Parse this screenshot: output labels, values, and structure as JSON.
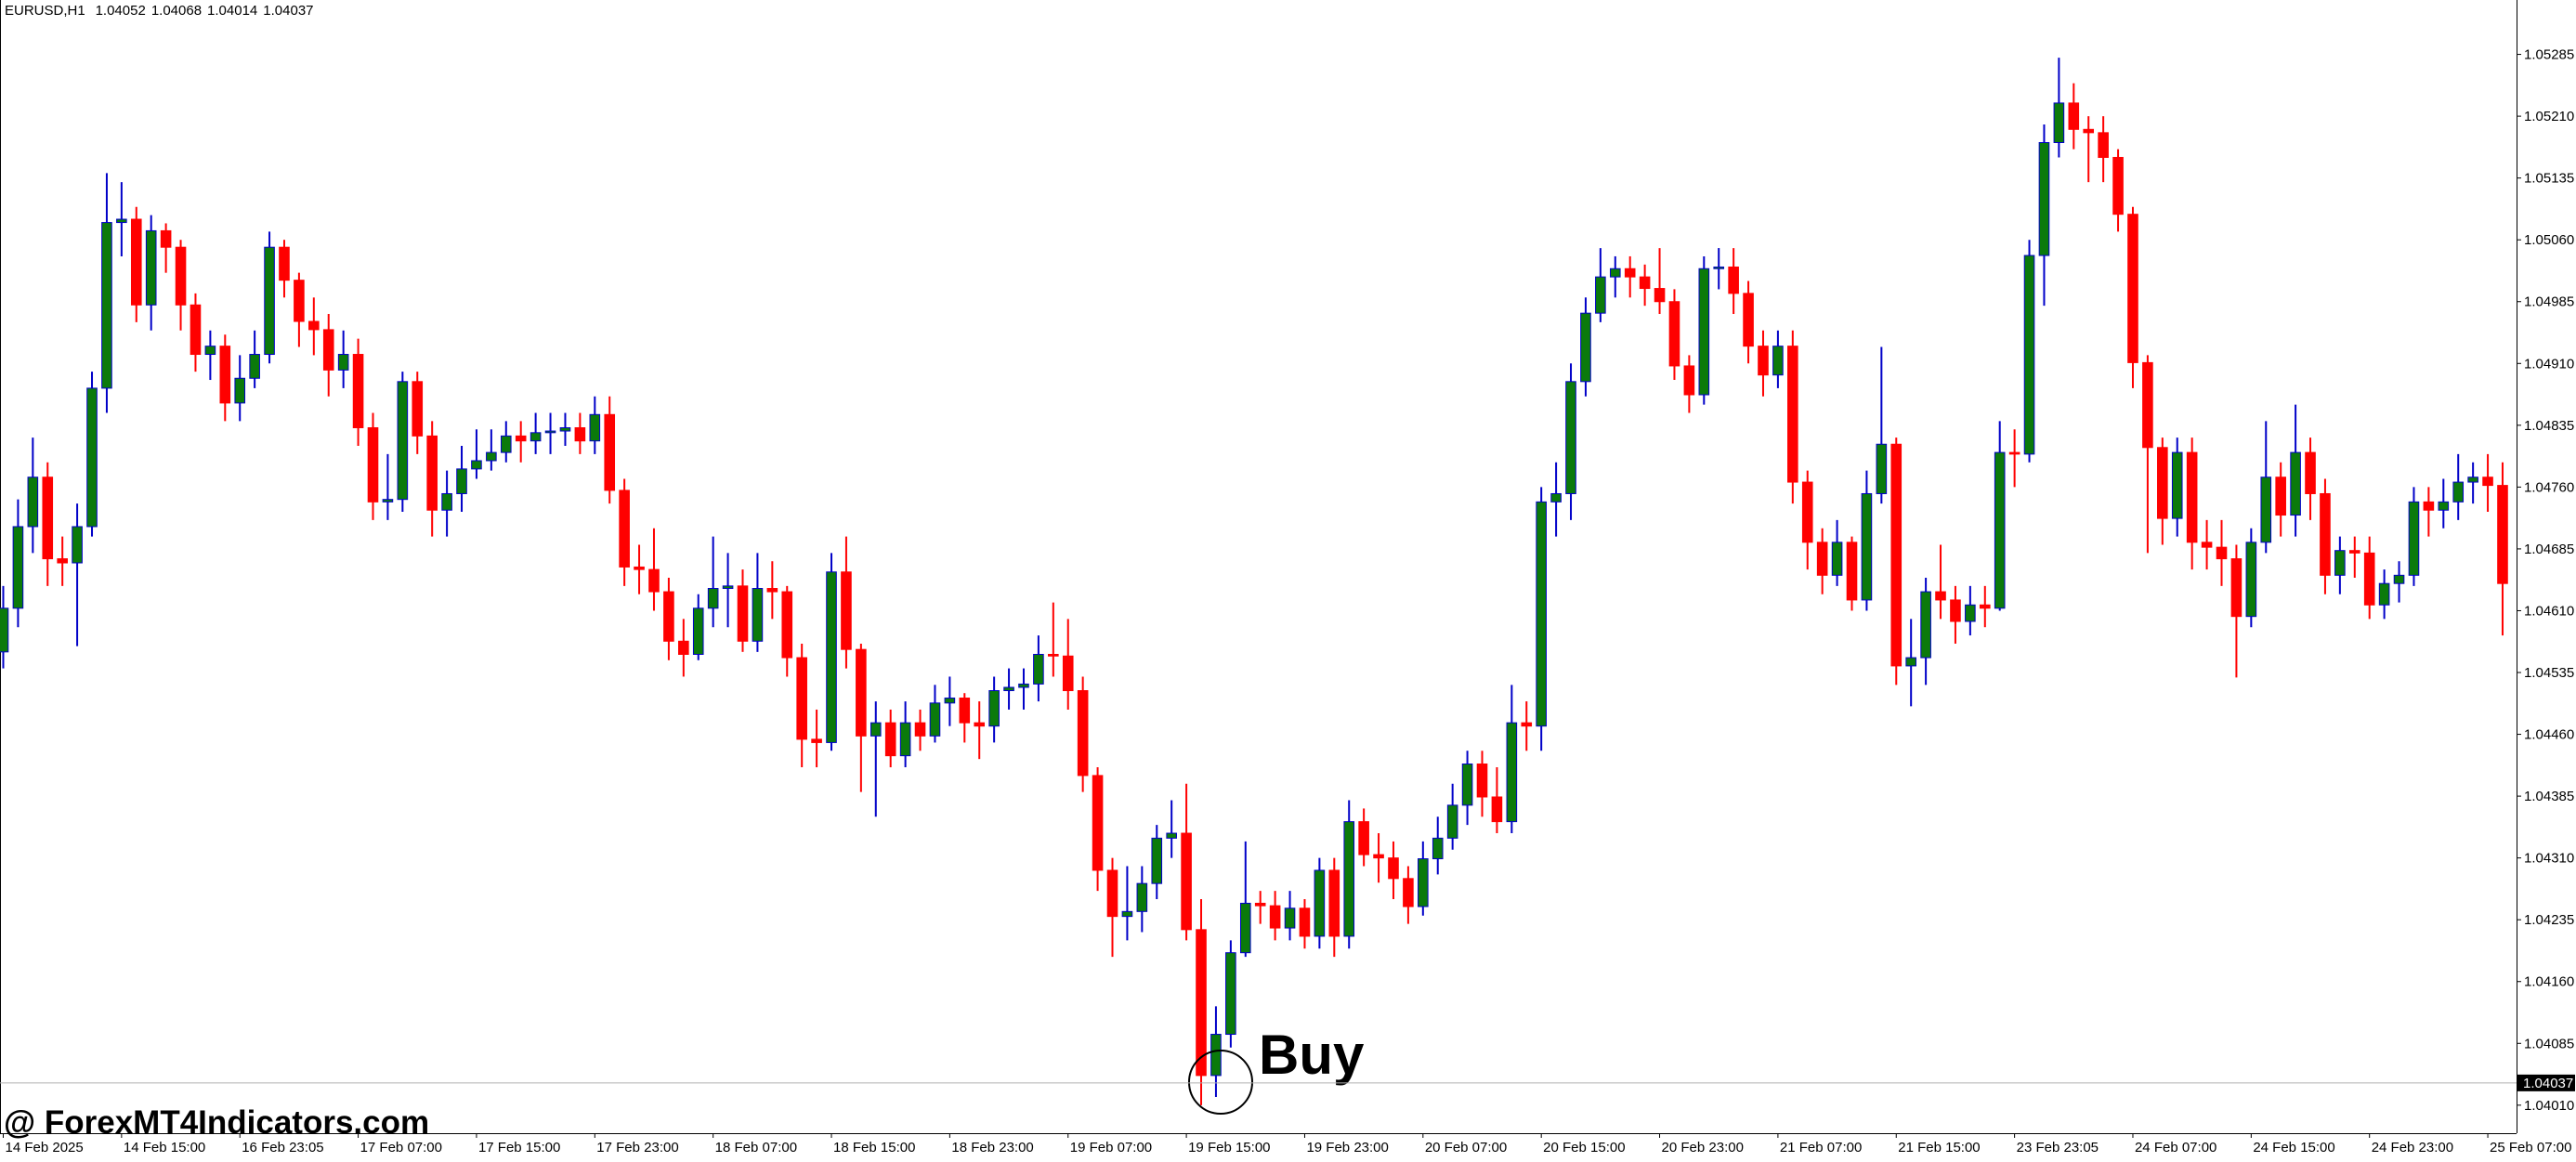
{
  "chart_data": {
    "type": "candlestick",
    "info": {
      "symbol": "EURUSD,H1",
      "open": 1.04052,
      "high": 1.04068,
      "low": 1.04014,
      "close": 1.04037
    },
    "bid": 1.04037,
    "annotation": "Buy",
    "watermark": "@ ForexMT4Indicators.com",
    "bull_color": "#0b7a0b",
    "bull_wick": "#0000c8",
    "bear_color": "#ff0000",
    "ylim": [
      1.03976,
      1.05351
    ],
    "yticks": [
      {
        "value": 1.0401,
        "label": "1.04010"
      },
      1.04085,
      {
        "value": 1.0416,
        "label": "1.04160"
      },
      1.04235,
      {
        "value": 1.0431,
        "label": "1.04310"
      },
      1.04385,
      {
        "value": 1.0446,
        "label": "1.04460"
      },
      1.04535,
      {
        "value": 1.0461,
        "label": "1.04610"
      },
      1.04685,
      {
        "value": 1.0476,
        "label": "1.04760"
      },
      1.04835,
      {
        "value": 1.0491,
        "label": "1.04910"
      },
      1.04985,
      {
        "value": 1.0506,
        "label": "1.05060"
      },
      1.05135,
      {
        "value": 1.0521,
        "label": "1.05210"
      },
      1.05285
    ],
    "categories": [
      "14 Feb 2025",
      null,
      null,
      null,
      null,
      null,
      null,
      null,
      "14 Feb 15:00",
      null,
      null,
      null,
      null,
      null,
      null,
      null,
      "16 Feb 23:05",
      null,
      null,
      null,
      null,
      null,
      null,
      null,
      "17 Feb 07:00",
      null,
      null,
      null,
      null,
      null,
      null,
      null,
      "17 Feb 15:00",
      null,
      null,
      null,
      null,
      null,
      null,
      null,
      "17 Feb 23:00",
      null,
      null,
      null,
      null,
      null,
      null,
      null,
      "18 Feb 07:00",
      null,
      null,
      null,
      null,
      null,
      null,
      null,
      "18 Feb 15:00",
      null,
      null,
      null,
      null,
      null,
      null,
      null,
      "18 Feb 23:00",
      null,
      null,
      null,
      null,
      null,
      null,
      null,
      "19 Feb 07:00",
      null,
      null,
      null,
      null,
      null,
      null,
      null,
      "19 Feb 15:00",
      null,
      null,
      null,
      null,
      null,
      null,
      null,
      "19 Feb 23:00",
      null,
      null,
      null,
      null,
      null,
      null,
      null,
      "20 Feb 07:00",
      null,
      null,
      null,
      null,
      null,
      null,
      null,
      "20 Feb 15:00",
      null,
      null,
      null,
      null,
      null,
      null,
      null,
      "20 Feb 23:00",
      null,
      null,
      null,
      null,
      null,
      null,
      null,
      "21 Feb 07:00",
      null,
      null,
      null,
      null,
      null,
      null,
      null,
      "21 Feb 15:00",
      null,
      null,
      null,
      null,
      null,
      null,
      null,
      "23 Feb 23:05",
      null,
      null,
      null,
      null,
      null,
      null,
      null,
      "24 Feb 07:00",
      null,
      null,
      null,
      null,
      null,
      null,
      null,
      "24 Feb 15:00",
      null,
      null,
      null,
      null,
      null,
      null,
      null,
      "24 Feb 23:00",
      null,
      null,
      null,
      null,
      null,
      null,
      null,
      "25 Feb 07:00",
      null
    ],
    "open": [
      1.0456,
      1.04613,
      1.04712,
      1.04772,
      1.04673,
      1.04668,
      1.04712,
      1.0488,
      1.05081,
      1.05085,
      1.04981,
      1.05071,
      1.05051,
      1.04981,
      1.04921,
      1.04931,
      1.04862,
      1.04892,
      1.04921,
      1.05051,
      1.05011,
      1.04961,
      1.04951,
      1.04902,
      1.04921,
      1.04832,
      1.04742,
      1.04745,
      1.04888,
      1.04822,
      1.04732,
      1.04752,
      1.04782,
      1.04792,
      1.04802,
      1.04822,
      1.04816,
      1.04826,
      1.04828,
      1.04832,
      1.04816,
      1.04848,
      1.04756,
      1.04663,
      1.0466,
      1.04633,
      1.04573,
      1.04557,
      1.04613,
      1.04637,
      1.0464,
      1.04573,
      1.04637,
      1.04633,
      1.04553,
      1.04454,
      1.0445,
      1.04657,
      1.04563,
      1.04458,
      1.04474,
      1.04434,
      1.04474,
      1.04458,
      1.04498,
      1.04504,
      1.04474,
      1.0447,
      1.04513,
      1.04517,
      1.04521,
      1.04557,
      1.04555,
      1.04513,
      1.0441,
      1.04295,
      1.04239,
      1.04245,
      1.04279,
      1.04334,
      1.0434,
      1.04223,
      1.04046,
      1.04096,
      1.04195,
      1.04255,
      1.04252,
      1.04225,
      1.04249,
      1.04215,
      1.04295,
      1.04215,
      1.04354,
      1.04314,
      1.0431,
      1.04285,
      1.04251,
      1.04309,
      1.04334,
      1.04374,
      1.04424,
      1.04384,
      1.04354,
      1.04474,
      1.0447,
      1.04742,
      1.04752,
      1.04888,
      1.04971,
      1.05015,
      1.05025,
      1.05015,
      1.05001,
      1.04985,
      1.04907,
      1.04872,
      1.05025,
      1.05027,
      1.04995,
      1.04931,
      1.04896,
      1.04931,
      1.04766,
      1.04693,
      1.04653,
      1.04693,
      1.04623,
      1.04752,
      1.04812,
      1.04543,
      1.04553,
      1.04633,
      1.04623,
      1.04597,
      1.04617,
      1.04613,
      1.04802,
      1.048,
      1.05041,
      1.05178,
      1.05226,
      1.05194,
      1.0519,
      1.0516,
      1.05091,
      1.04911,
      1.04808,
      1.04722,
      1.04802,
      1.04693,
      1.04687,
      1.04673,
      1.04603,
      1.04693,
      1.04772,
      1.04726,
      1.04802,
      1.04752,
      1.04653,
      1.04683,
      1.0468,
      1.04617,
      1.04643,
      1.04653,
      1.04742,
      1.04732,
      1.04742,
      1.04766,
      1.04772,
      1.04762
    ],
    "high": [
      1.0464,
      1.04745,
      1.0482,
      1.0479,
      1.047,
      1.0474,
      1.049,
      1.05141,
      1.0513,
      1.051,
      1.0509,
      1.0508,
      1.0506,
      1.04995,
      1.0495,
      1.04945,
      1.0492,
      1.0495,
      1.0507,
      1.0506,
      1.0502,
      1.0499,
      1.0497,
      1.0495,
      1.0494,
      1.0485,
      1.048,
      1.049,
      1.049,
      1.0484,
      1.0478,
      1.0481,
      1.0483,
      1.0483,
      1.0484,
      1.0484,
      1.0485,
      1.0485,
      1.0485,
      1.0485,
      1.0487,
      1.0487,
      1.0477,
      1.0469,
      1.0471,
      1.0465,
      1.046,
      1.0463,
      1.047,
      1.0468,
      1.0466,
      1.0468,
      1.0467,
      1.0464,
      1.0457,
      1.0449,
      1.0468,
      1.047,
      1.0457,
      1.045,
      1.0449,
      1.045,
      1.0449,
      1.0452,
      1.0453,
      1.0451,
      1.045,
      1.0453,
      1.0454,
      1.0454,
      1.0458,
      1.0462,
      1.046,
      1.0453,
      1.0442,
      1.0431,
      1.043,
      1.043,
      1.0435,
      1.0438,
      1.044,
      1.0426,
      1.0413,
      1.0421,
      1.0433,
      1.0427,
      1.0427,
      1.0427,
      1.0426,
      1.0431,
      1.0431,
      1.0438,
      1.0437,
      1.0434,
      1.0433,
      1.043,
      1.0433,
      1.0436,
      1.044,
      1.0444,
      1.0444,
      1.0442,
      1.0452,
      1.045,
      1.0476,
      1.0479,
      1.0491,
      1.0499,
      1.0505,
      1.0504,
      1.0504,
      1.0503,
      1.0505,
      1.05,
      1.0492,
      1.0504,
      1.0505,
      1.0505,
      1.0501,
      1.0495,
      1.0495,
      1.0495,
      1.0478,
      1.0471,
      1.0472,
      1.047,
      1.0478,
      1.0493,
      1.0482,
      1.046,
      1.0465,
      1.0469,
      1.0464,
      1.0464,
      1.0464,
      1.0484,
      1.0483,
      1.0506,
      1.052,
      1.05281,
      1.0525,
      1.0521,
      1.0521,
      1.0517,
      1.051,
      1.0492,
      1.0482,
      1.0482,
      1.0482,
      1.0472,
      1.0472,
      1.0469,
      1.0471,
      1.0484,
      1.0479,
      1.0486,
      1.0482,
      1.0477,
      1.047,
      1.047,
      1.047,
      1.0466,
      1.0467,
      1.0476,
      1.0476,
      1.0477,
      1.048,
      1.0479,
      1.048,
      1.0479
    ],
    "low": [
      1.0454,
      1.0459,
      1.0468,
      1.0464,
      1.0464,
      1.04567,
      1.047,
      1.0485,
      1.0504,
      1.0496,
      1.0495,
      1.0502,
      1.0495,
      1.049,
      1.0489,
      1.0484,
      1.0484,
      1.0488,
      1.0491,
      1.0499,
      1.0493,
      1.0492,
      1.0487,
      1.0488,
      1.0481,
      1.0472,
      1.0472,
      1.0473,
      1.048,
      1.047,
      1.047,
      1.0473,
      1.0477,
      1.0478,
      1.0479,
      1.0479,
      1.048,
      1.048,
      1.0481,
      1.048,
      1.048,
      1.0474,
      1.0464,
      1.0463,
      1.0461,
      1.0455,
      1.0453,
      1.0455,
      1.0459,
      1.0459,
      1.0456,
      1.0456,
      1.046,
      1.0453,
      1.0442,
      1.0442,
      1.0444,
      1.0454,
      1.0439,
      1.0436,
      1.0442,
      1.0442,
      1.0444,
      1.0445,
      1.0447,
      1.0445,
      1.0443,
      1.0445,
      1.0449,
      1.0449,
      1.045,
      1.0453,
      1.0449,
      1.0439,
      1.0427,
      1.0419,
      1.0421,
      1.0422,
      1.0426,
      1.0431,
      1.0421,
      1.0401,
      1.0402,
      1.0408,
      1.0419,
      1.0423,
      1.0421,
      1.0421,
      1.042,
      1.042,
      1.0419,
      1.042,
      1.043,
      1.0428,
      1.0426,
      1.0423,
      1.0424,
      1.0429,
      1.0432,
      1.0435,
      1.0436,
      1.0434,
      1.0434,
      1.0444,
      1.0444,
      1.047,
      1.0472,
      1.0487,
      1.0496,
      1.0499,
      1.0499,
      1.0498,
      1.0497,
      1.0489,
      1.0485,
      1.0486,
      1.05,
      1.0497,
      1.0491,
      1.0487,
      1.0488,
      1.0474,
      1.0466,
      1.0463,
      1.0464,
      1.0461,
      1.0461,
      1.0474,
      1.0452,
      1.04494,
      1.0452,
      1.046,
      1.0457,
      1.0458,
      1.0459,
      1.0461,
      1.0476,
      1.0479,
      1.0498,
      1.0516,
      1.0517,
      1.0513,
      1.0513,
      1.0507,
      1.0488,
      1.0468,
      1.0469,
      1.047,
      1.0466,
      1.0466,
      1.0464,
      1.04529,
      1.0459,
      1.0468,
      1.047,
      1.047,
      1.0472,
      1.0463,
      1.0463,
      1.0465,
      1.046,
      1.046,
      1.0462,
      1.0464,
      1.047,
      1.0471,
      1.0472,
      1.0474,
      1.0473,
      1.0458
    ],
    "close": [
      1.04613,
      1.04712,
      1.04772,
      1.04673,
      1.04668,
      1.04712,
      1.0488,
      1.05081,
      1.05085,
      1.04981,
      1.05071,
      1.05051,
      1.04981,
      1.04921,
      1.04931,
      1.04862,
      1.04892,
      1.04921,
      1.05051,
      1.05011,
      1.04961,
      1.04951,
      1.04902,
      1.04921,
      1.04832,
      1.04742,
      1.04745,
      1.04888,
      1.04822,
      1.04732,
      1.04752,
      1.04782,
      1.04792,
      1.04802,
      1.04822,
      1.04816,
      1.04826,
      1.04828,
      1.04832,
      1.04816,
      1.04848,
      1.04756,
      1.04663,
      1.0466,
      1.04633,
      1.04573,
      1.04557,
      1.04613,
      1.04637,
      1.0464,
      1.04573,
      1.04637,
      1.04633,
      1.04553,
      1.04454,
      1.0445,
      1.04657,
      1.04563,
      1.04458,
      1.04474,
      1.04434,
      1.04474,
      1.04458,
      1.04498,
      1.04504,
      1.04474,
      1.0447,
      1.04513,
      1.04517,
      1.04521,
      1.04557,
      1.04555,
      1.04513,
      1.0441,
      1.04295,
      1.04239,
      1.04245,
      1.04279,
      1.04334,
      1.0434,
      1.04223,
      1.04046,
      1.04096,
      1.04195,
      1.04255,
      1.04252,
      1.04225,
      1.04249,
      1.04215,
      1.04295,
      1.04215,
      1.04354,
      1.04314,
      1.0431,
      1.04285,
      1.04251,
      1.04309,
      1.04334,
      1.04374,
      1.04424,
      1.04384,
      1.04354,
      1.04474,
      1.0447,
      1.04742,
      1.04752,
      1.04888,
      1.04971,
      1.05015,
      1.05025,
      1.05015,
      1.05001,
      1.04985,
      1.04907,
      1.04872,
      1.05025,
      1.05027,
      1.04995,
      1.04931,
      1.04896,
      1.04931,
      1.04766,
      1.04693,
      1.04653,
      1.04693,
      1.04623,
      1.04752,
      1.04812,
      1.04543,
      1.04553,
      1.04633,
      1.04623,
      1.04597,
      1.04617,
      1.04613,
      1.04802,
      1.048,
      1.05041,
      1.05178,
      1.05226,
      1.05194,
      1.0519,
      1.0516,
      1.05091,
      1.04911,
      1.04808,
      1.04722,
      1.04802,
      1.04693,
      1.04687,
      1.04673,
      1.04603,
      1.04693,
      1.04772,
      1.04726,
      1.04802,
      1.04752,
      1.04653,
      1.04683,
      1.0468,
      1.04617,
      1.04643,
      1.04653,
      1.04742,
      1.04732,
      1.04742,
      1.04766,
      1.04772,
      1.04762,
      1.04643
    ]
  }
}
